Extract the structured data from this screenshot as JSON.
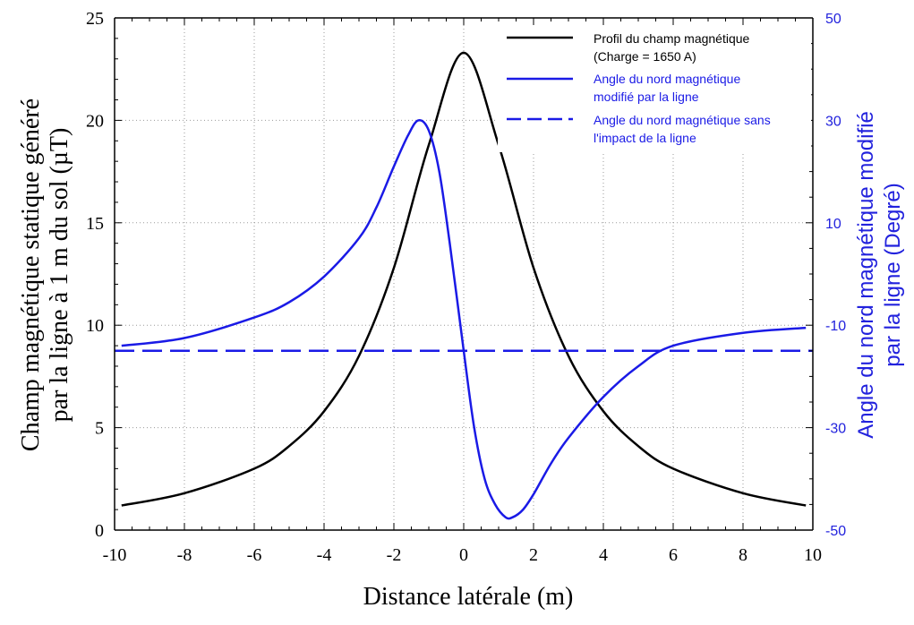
{
  "chart_data": {
    "type": "line",
    "xlabel": "Distance latérale (m)",
    "ylabel_left": [
      "Champ magnétique statique généré",
      "par la ligne à 1 m du sol (µT)"
    ],
    "ylabel_right": [
      "Angle du nord magnétique modifié",
      "par la ligne (Degré)"
    ],
    "xlim": [
      -10,
      10
    ],
    "ylim_left": [
      0,
      25
    ],
    "ylim_right": [
      -50,
      50
    ],
    "x_ticks": [
      "-10",
      "-8",
      "-6",
      "-4",
      "-2",
      "0",
      "2",
      "4",
      "6",
      "8",
      "10"
    ],
    "y_left_ticks": [
      "0",
      "5",
      "10",
      "15",
      "20",
      "25"
    ],
    "y_right_ticks": [
      "-50",
      "-30",
      "-10",
      "10",
      "30",
      "50"
    ],
    "grid": true,
    "legend_position": "top-right",
    "colors": {
      "field": "#000000",
      "angle": "#1a1ae6",
      "right_axis": "#2222dd"
    },
    "series": [
      {
        "name": "Profil du champ magnétique",
        "name_line2": "(Charge = 1650 A)",
        "axis": "left",
        "style": "solid",
        "color": "#000000",
        "x": [
          -9.8,
          -8,
          -6,
          -5,
          -4,
          -3,
          -2,
          -1,
          0,
          1,
          2,
          3,
          4,
          5,
          6,
          8,
          9.8
        ],
        "y": [
          1.2,
          1.8,
          3.0,
          4.1,
          5.8,
          8.5,
          12.8,
          18.8,
          23.3,
          18.8,
          12.8,
          8.5,
          5.8,
          4.1,
          3.0,
          1.8,
          1.2
        ]
      },
      {
        "name": "Angle du nord magnétique",
        "name_line2": "modifié par la ligne",
        "axis": "right",
        "style": "solid",
        "color": "#1a1ae6",
        "x": [
          -9.8,
          -8,
          -6,
          -5,
          -4,
          -3,
          -2.5,
          -2,
          -1.6,
          -1.3,
          -1.0,
          -0.7,
          -0.4,
          0,
          0.3,
          0.6,
          0.9,
          1.2,
          1.4,
          1.7,
          2,
          2.5,
          3,
          4,
          5,
          6,
          8,
          9.8
        ],
        "y": [
          -14,
          -12.5,
          -8.5,
          -5.5,
          -0.5,
          7,
          13,
          21,
          27,
          30,
          28,
          20,
          6,
          -15,
          -30,
          -40,
          -45,
          -47.5,
          -47.5,
          -46,
          -43,
          -37,
          -32,
          -24,
          -18,
          -14,
          -11.5,
          -10.5
        ]
      },
      {
        "name": "Angle du nord magnétique sans",
        "name_line2": "l'impact de la ligne",
        "axis": "right",
        "style": "dashed",
        "color": "#1a1ae6",
        "x": [
          -10,
          10
        ],
        "y": [
          -15,
          -15
        ]
      }
    ]
  }
}
